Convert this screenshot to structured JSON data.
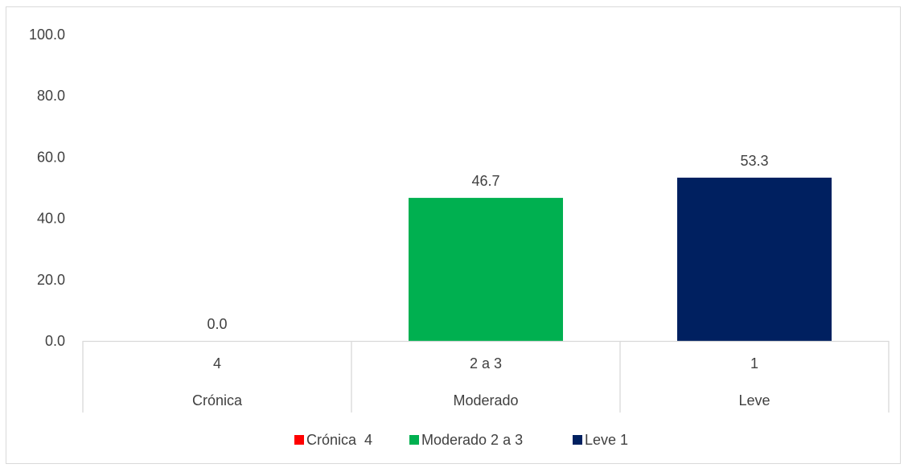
{
  "chart_data": {
    "type": "bar",
    "categories": [
      {
        "code": "4",
        "group": "Crónica"
      },
      {
        "code": "2 a 3",
        "group": "Moderado"
      },
      {
        "code": "1",
        "group": "Leve"
      }
    ],
    "values": [
      0.0,
      46.7,
      53.3
    ],
    "data_labels": [
      "0.0",
      "46.7",
      "53.3"
    ],
    "colors": [
      "#ff0000",
      "#00b050",
      "#002060"
    ],
    "ylim": [
      0,
      100
    ],
    "yticks": [
      "0.0",
      "20.0",
      "40.0",
      "60.0",
      "80.0",
      "100.0"
    ],
    "grid": false,
    "legend": {
      "position": "bottom",
      "entries": [
        "Crónica  4",
        "Moderado 2 a 3",
        "Leve 1"
      ]
    }
  }
}
